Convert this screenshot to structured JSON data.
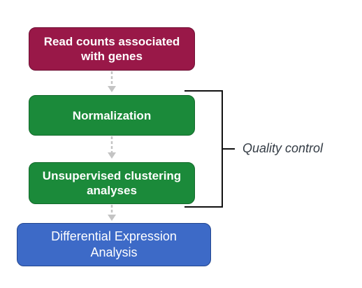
{
  "steps": {
    "read_counts": {
      "line1": "Read counts associated",
      "line2": "with genes"
    },
    "normalization": {
      "line1": "Normalization"
    },
    "clustering": {
      "line1": "Unsupervised clustering",
      "line2": "analyses"
    },
    "differential": {
      "line1": "Differential Expression",
      "line2": "Analysis"
    }
  },
  "bracket": {
    "label": "Quality control"
  },
  "colors": {
    "read_counts": "#991848",
    "quality_steps": "#1b8a3a",
    "differential": "#3d6ac7",
    "arrow": "#c4c4c4",
    "bracket": "#111111"
  }
}
